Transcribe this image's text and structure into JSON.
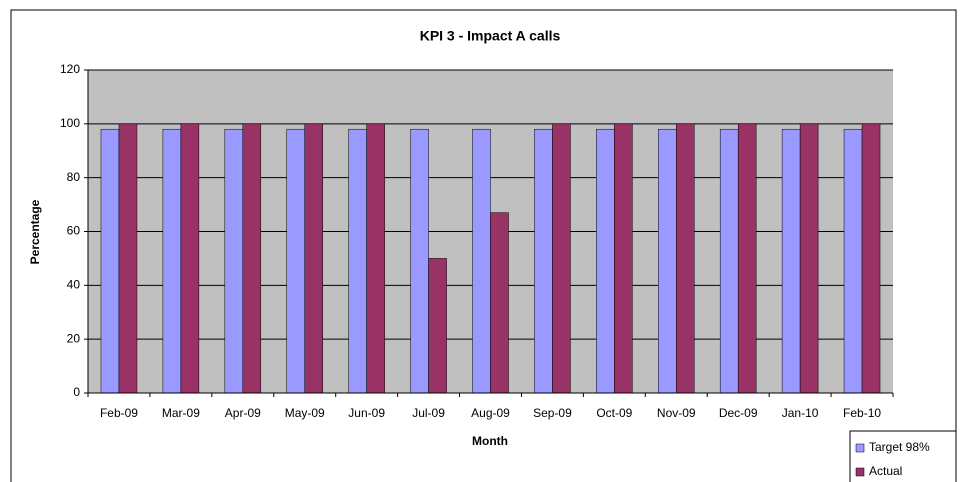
{
  "chart_data": {
    "type": "bar",
    "title": "KPI 3 - Impact A calls",
    "x_label": "Month",
    "y_label": "Percentage",
    "categories": [
      "Feb-09",
      "Mar-09",
      "Apr-09",
      "May-09",
      "Jun-09",
      "Jul-09",
      "Aug-09",
      "Sep-09",
      "Oct-09",
      "Nov-09",
      "Dec-09",
      "Jan-10",
      "Feb-10"
    ],
    "series": [
      {
        "name": "Target 98%",
        "color": "#9999ff",
        "values": [
          98,
          98,
          98,
          98,
          98,
          98,
          98,
          98,
          98,
          98,
          98,
          98,
          98
        ]
      },
      {
        "name": "Actual",
        "color": "#993366",
        "values": [
          100,
          100,
          100,
          100,
          100,
          50,
          67,
          100,
          100,
          100,
          100,
          100,
          100
        ]
      }
    ],
    "ylim": [
      0,
      120
    ],
    "yticks": [
      0,
      20,
      40,
      60,
      80,
      100,
      120
    ],
    "grid": true,
    "plot_background": "#c0c0c0"
  }
}
